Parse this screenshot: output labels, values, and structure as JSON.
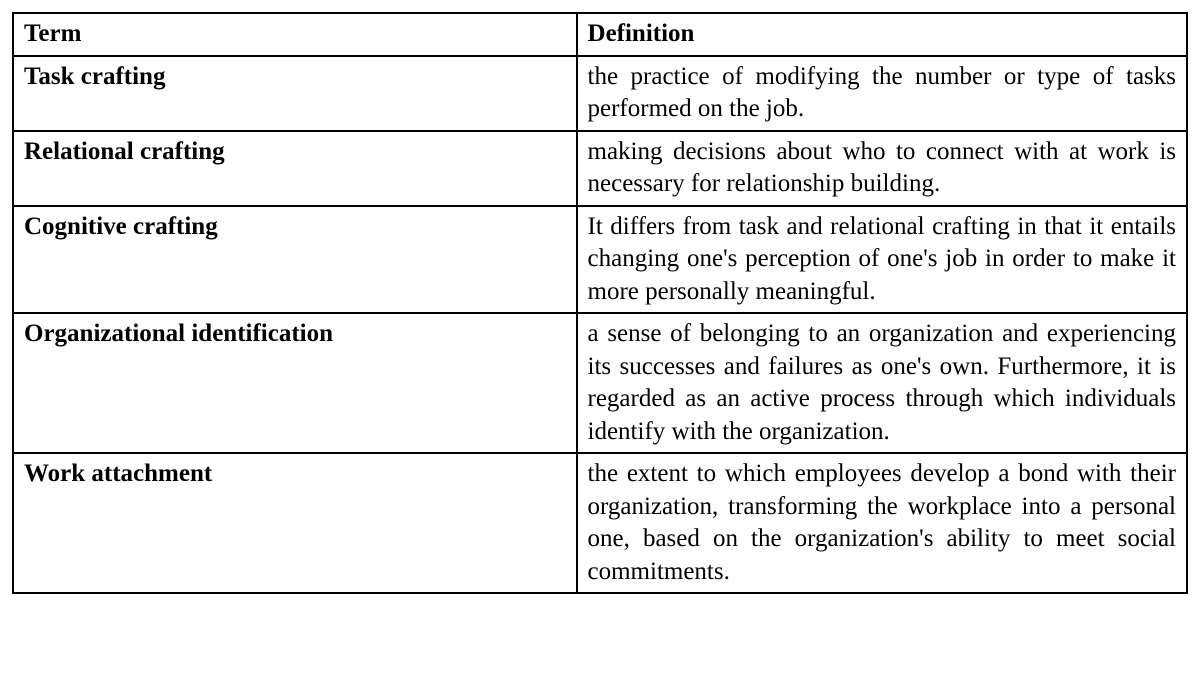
{
  "table": {
    "columns": [
      "Term",
      "Definition"
    ],
    "column_widths": [
      "48%",
      "52%"
    ],
    "border_color": "#000000",
    "background_color": "#ffffff",
    "font_family": "Times New Roman",
    "header_fontsize": 25,
    "cell_fontsize": 25,
    "header_weight": "bold",
    "term_weight": "bold",
    "definition_align": "justify",
    "rows": [
      {
        "term": "Task crafting",
        "definition": "the practice of modifying the number or type of tasks performed on the job."
      },
      {
        "term": "Relational crafting",
        "definition": "making decisions about who to connect with at work is necessary for relationship building."
      },
      {
        "term": "Cognitive crafting",
        "definition": "It differs from task and relational crafting in that it entails changing one's perception of one's job in order to make it more personally meaningful."
      },
      {
        "term": "Organizational identification",
        "definition": "a sense of belonging to an organization and experiencing its successes and failures as one's own. Furthermore, it is regarded as an active process through which individuals identify with the organization."
      },
      {
        "term": "Work attachment",
        "definition": "the extent to which employees develop a bond with their organization, transforming the workplace into a personal one, based on the organization's ability to meet social commitments."
      }
    ]
  }
}
